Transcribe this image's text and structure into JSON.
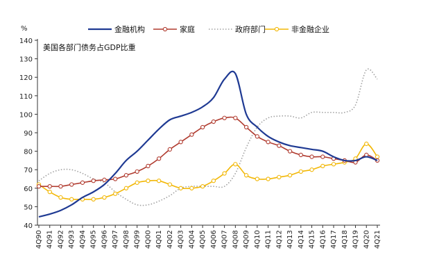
{
  "chart_data": {
    "type": "line",
    "title": "",
    "annotation": "美国各部门债务占GDP比重",
    "ylabel": "%",
    "xlabel": "",
    "ylim": [
      40,
      140
    ],
    "yticks": [
      40,
      50,
      60,
      70,
      80,
      90,
      100,
      110,
      120,
      130,
      140
    ],
    "grid": false,
    "legend": "top",
    "x": [
      "4Q90",
      "4Q91",
      "4Q92",
      "4Q93",
      "4Q94",
      "4Q95",
      "4Q96",
      "4Q97",
      "4Q98",
      "4Q99",
      "4Q00",
      "4Q01",
      "4Q02",
      "4Q03",
      "4Q04",
      "4Q05",
      "4Q06",
      "4Q07",
      "4Q08",
      "4Q09",
      "4Q10",
      "4Q11",
      "4Q12",
      "4Q13",
      "4Q14",
      "4Q15",
      "4Q16",
      "4Q17",
      "4Q18",
      "4Q19",
      "4Q20",
      "4Q21"
    ],
    "series": [
      {
        "name": "金融机构",
        "color": "#1f3a93",
        "style": "solid",
        "values": [
          44.5,
          46,
          48,
          51,
          55,
          58,
          62,
          68,
          75,
          80,
          86,
          92,
          97,
          99,
          101,
          104,
          109,
          119,
          122,
          100,
          93,
          88,
          85,
          83,
          82,
          81,
          80,
          77,
          75,
          75,
          77,
          75
        ]
      },
      {
        "name": "家庭",
        "color": "#b03a2e",
        "style": "circle-line",
        "values": [
          61,
          61,
          61,
          62,
          63,
          64,
          64.5,
          65,
          67,
          69,
          72,
          76,
          81,
          85,
          89,
          93,
          96,
          98,
          98,
          93,
          88,
          85,
          83,
          80,
          78,
          77,
          77,
          76,
          75,
          74,
          78,
          75
        ]
      },
      {
        "name": "政府部门",
        "color": "#a0a0a0",
        "style": "dotted",
        "values": [
          64,
          68,
          70,
          70,
          68,
          65,
          63,
          58,
          54,
          51,
          51,
          53,
          56,
          60,
          61,
          61,
          61,
          61,
          68,
          82,
          93,
          98,
          99,
          99,
          98,
          101,
          101,
          101,
          101,
          105,
          124,
          119
        ]
      },
      {
        "name": "非金融企业",
        "color": "#f2b705",
        "style": "circle-line",
        "values": [
          62,
          58,
          55,
          54,
          54,
          54,
          55,
          57,
          60,
          63,
          64,
          64,
          62,
          60,
          60,
          61,
          64,
          68,
          73,
          67,
          65,
          65,
          66,
          67,
          69,
          70,
          72,
          73,
          74,
          76,
          84,
          77
        ]
      }
    ]
  }
}
